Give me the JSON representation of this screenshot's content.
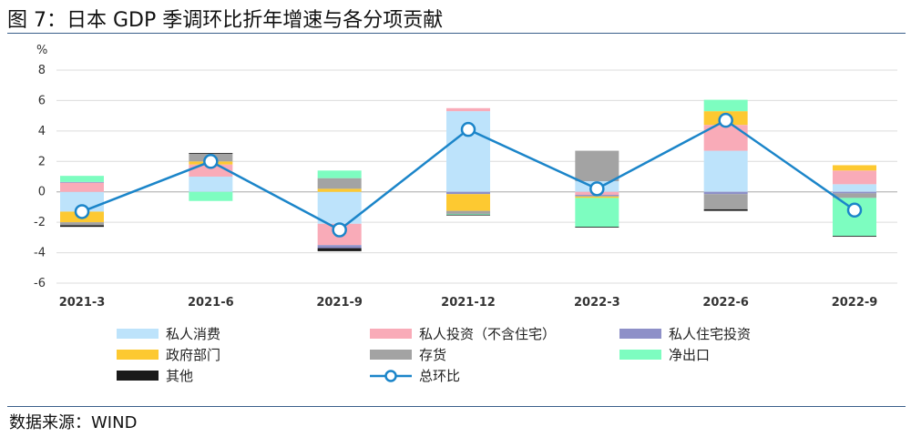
{
  "header": {
    "title": "图 7：日本 GDP 季调环比折年增速与各分项贡献"
  },
  "footer": {
    "source": "数据来源：WIND"
  },
  "chart_data": {
    "type": "bar",
    "stacked": true,
    "title": "图 7：日本 GDP 季调环比折年增速与各分项贡献",
    "ylabel": "%",
    "ylim": [
      -6,
      8
    ],
    "yticks": [
      -6,
      -4,
      -2,
      0,
      2,
      4,
      6,
      8
    ],
    "grid": true,
    "legend_position": "bottom",
    "categories": [
      "2021-3",
      "2021-6",
      "2021-9",
      "2021-12",
      "2022-3",
      "2022-6",
      "2022-9"
    ],
    "series": [
      {
        "name": "私人消费",
        "color": "#bde3fb",
        "values": [
          -1.3,
          1.0,
          -2.1,
          5.3,
          0.7,
          2.7,
          0.5
        ]
      },
      {
        "name": "私人投资（不含住宅）",
        "color": "#f9abb8",
        "values": [
          0.6,
          0.8,
          -1.4,
          0.2,
          -0.2,
          1.7,
          0.9
        ]
      },
      {
        "name": "私人住宅投资",
        "color": "#8e90c8",
        "values": [
          0.05,
          0.0,
          -0.2,
          -0.15,
          -0.1,
          -0.15,
          -0.1
        ]
      },
      {
        "name": "政府部门",
        "color": "#fdc931",
        "values": [
          -0.7,
          0.2,
          0.2,
          -1.1,
          -0.1,
          0.9,
          0.35
        ]
      },
      {
        "name": "存货",
        "color": "#a3a3a3",
        "values": [
          -0.2,
          0.5,
          0.7,
          -0.2,
          2.0,
          -1.0,
          -0.3
        ]
      },
      {
        "name": "净出口",
        "color": "#7dfdc0",
        "values": [
          0.4,
          -0.6,
          0.5,
          -0.05,
          -1.9,
          0.75,
          -2.5
        ]
      },
      {
        "name": "其他",
        "color": "#1a1a1a",
        "values": [
          -0.1,
          0.05,
          -0.2,
          -0.05,
          -0.05,
          -0.1,
          -0.05
        ]
      }
    ],
    "line": {
      "name": "总环比",
      "color": "#1b85c9",
      "values": [
        -1.3,
        2.0,
        -2.5,
        4.1,
        0.2,
        4.7,
        -1.2
      ]
    }
  }
}
